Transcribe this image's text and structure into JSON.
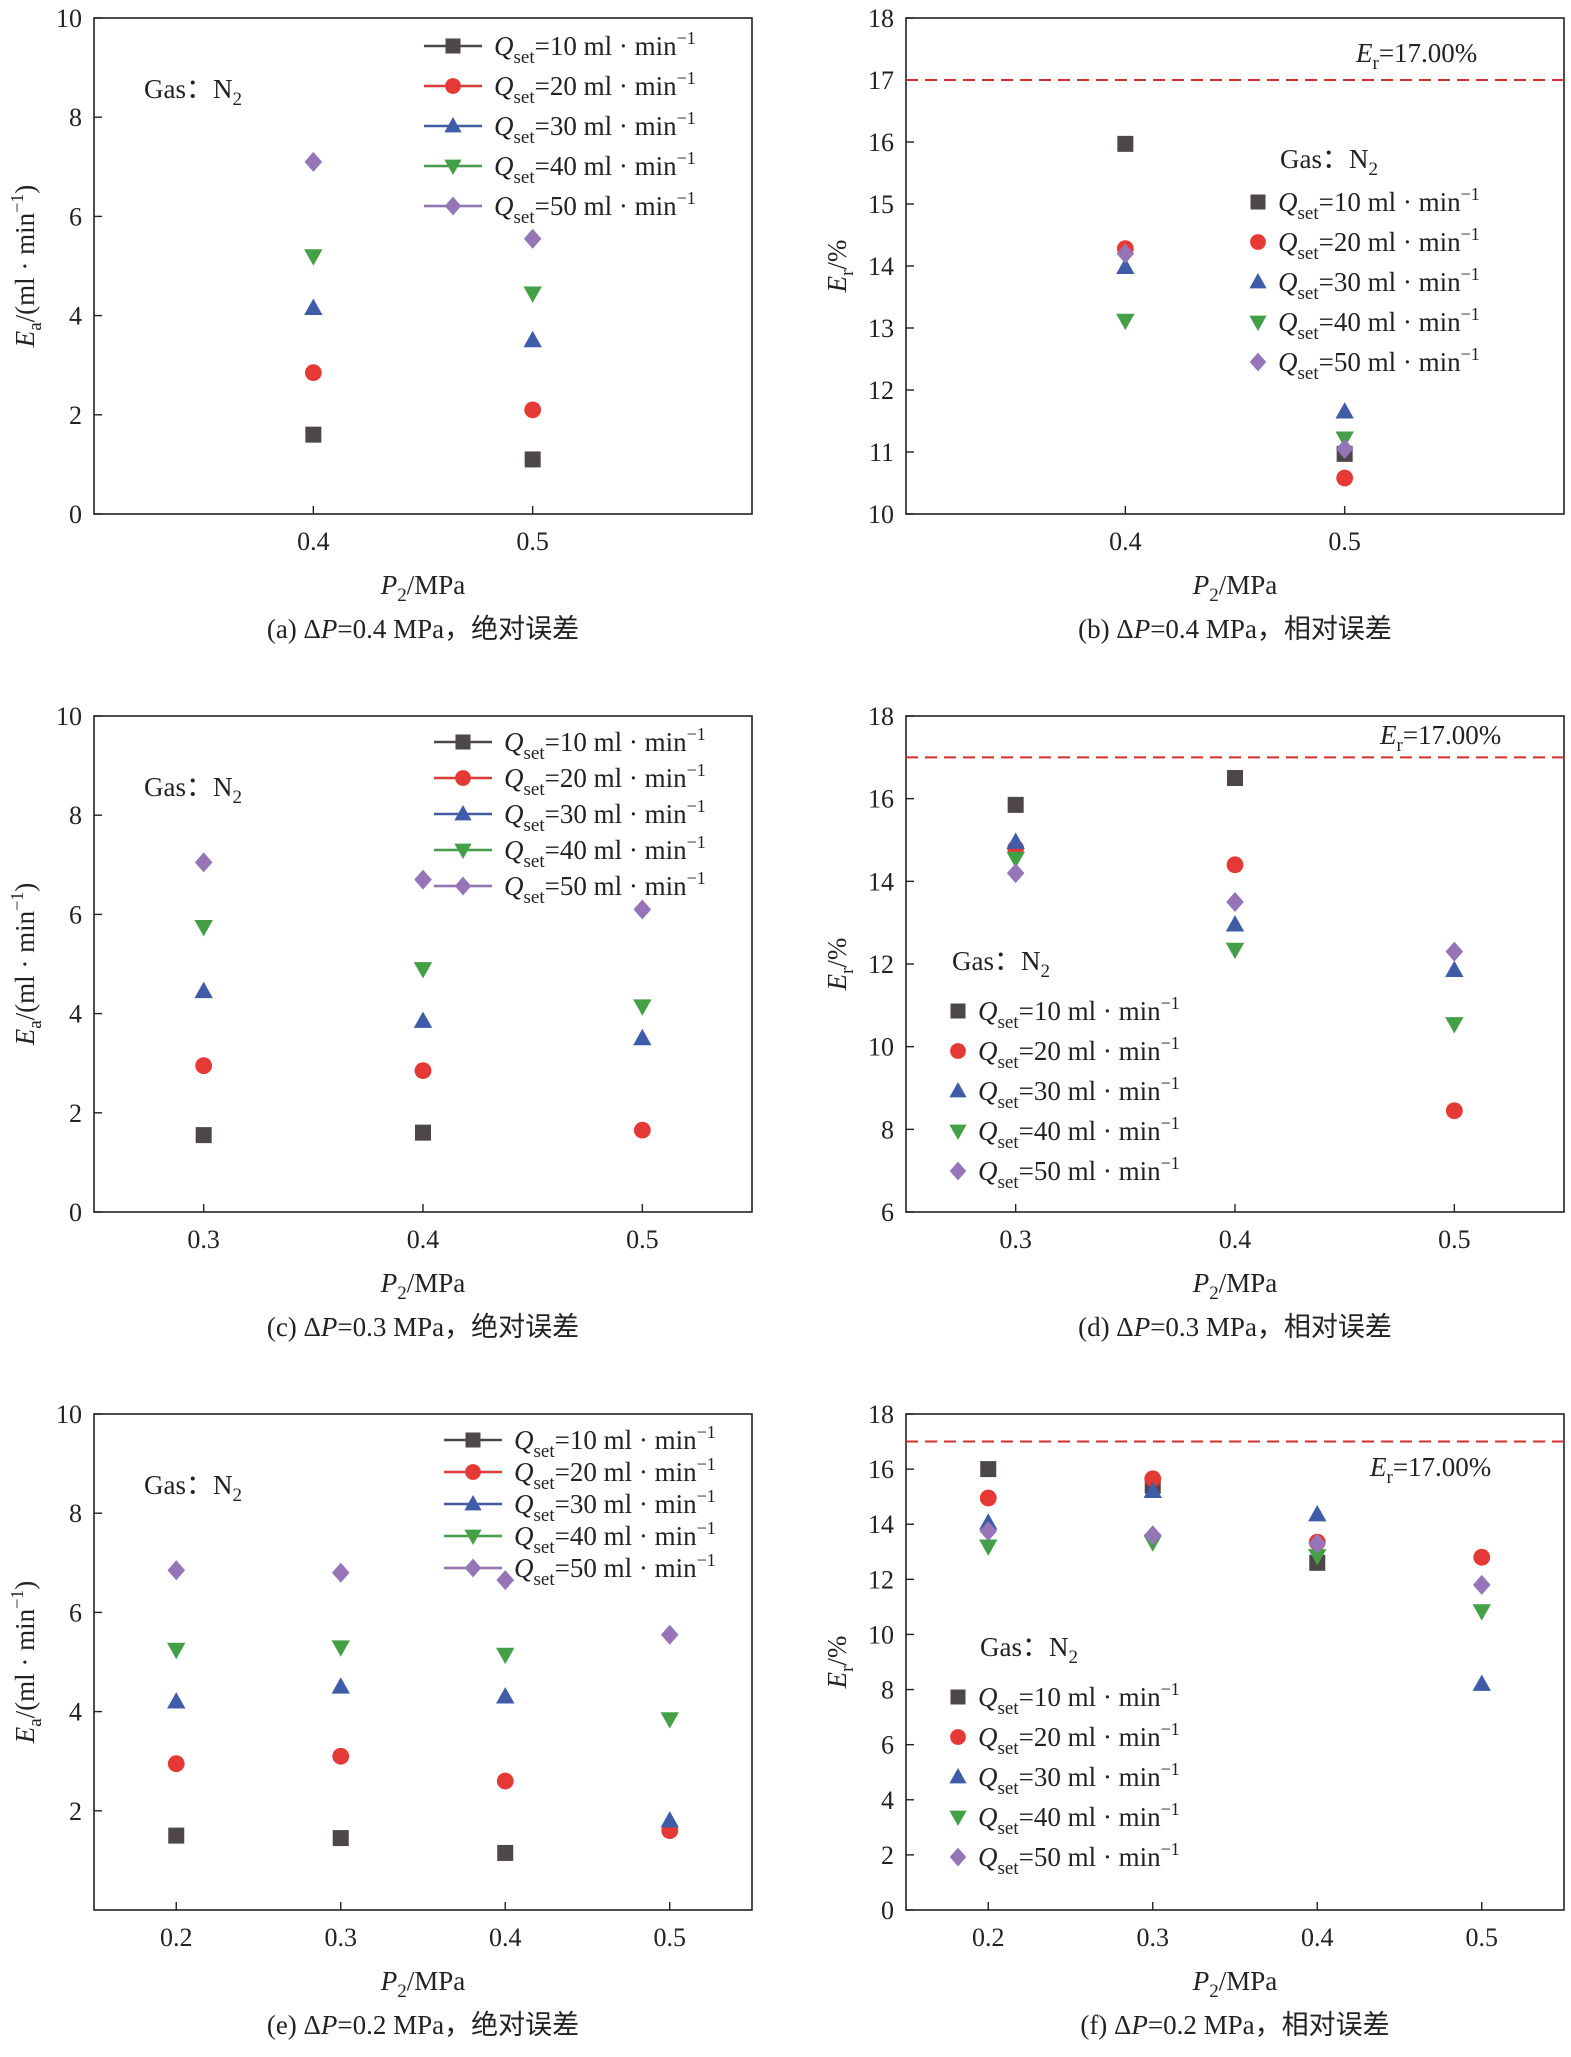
{
  "symbols": {
    "gas_prefix": "Gas：",
    "gas_name": "N",
    "gas_sub": "2",
    "q_symbol": "Q",
    "q_sub": "set",
    "unit_text": " ml · min",
    "unit_sup": "−1",
    "er_line_prefix": "E",
    "er_line_sub": "r",
    "er_line_value": "=17.00%"
  },
  "styles": {
    "series": [
      {
        "marker": "square",
        "color": "#4d4747"
      },
      {
        "marker": "circle",
        "color": "#e53935"
      },
      {
        "marker": "triangle-up",
        "color": "#3f5ca8"
      },
      {
        "marker": "triangle-down",
        "color": "#43a047"
      },
      {
        "marker": "diamond",
        "color": "#9575b8"
      }
    ],
    "threshold_color": "#d32f2f"
  },
  "chart_data": [
    {
      "type": "scatter",
      "caption": "(a) ΔP=0.4 MPa，绝对误差",
      "xlabel": "P2/MPa",
      "ylabel": "Ea/(ml · min−1)",
      "xlim": [
        0.3,
        0.6
      ],
      "ylim": [
        0,
        10
      ],
      "xticks": [
        0.4,
        0.5
      ],
      "xtick_labels": [
        "0.4",
        "0.5"
      ],
      "yticks": [
        0,
        2,
        4,
        6,
        8,
        10
      ],
      "x": [
        0.4,
        0.5
      ],
      "series": [
        {
          "name": "Qset=10 ml · min−1",
          "setpoint": "10",
          "values": [
            1.6,
            1.1
          ]
        },
        {
          "name": "Qset=20 ml · min−1",
          "setpoint": "20",
          "values": [
            2.85,
            2.1
          ]
        },
        {
          "name": "Qset=30 ml · min−1",
          "setpoint": "30",
          "values": [
            4.15,
            3.5
          ]
        },
        {
          "name": "Qset=40 ml · min−1",
          "setpoint": "40",
          "values": [
            5.2,
            4.45
          ]
        },
        {
          "name": "Qset=50 ml · min−1",
          "setpoint": "50",
          "values": [
            7.1,
            5.55
          ]
        }
      ],
      "legend": "top-right",
      "legend_lines": true,
      "gas_label": "Gas：N2",
      "threshold": null
    },
    {
      "type": "scatter",
      "caption": "(b) ΔP=0.4 MPa，相对误差",
      "xlabel": "P2/MPa",
      "ylabel": "Er/%",
      "xlim": [
        0.3,
        0.6
      ],
      "ylim": [
        10,
        18
      ],
      "xticks": [
        0.4,
        0.5
      ],
      "xtick_labels": [
        "0.4",
        "0.5"
      ],
      "yticks": [
        10,
        11,
        12,
        13,
        14,
        15,
        16,
        17,
        18
      ],
      "x": [
        0.4,
        0.5
      ],
      "series": [
        {
          "name": "Qset=10 ml · min−1",
          "setpoint": "10",
          "values": [
            15.97,
            10.97
          ]
        },
        {
          "name": "Qset=20 ml · min−1",
          "setpoint": "20",
          "values": [
            14.28,
            10.58
          ]
        },
        {
          "name": "Qset=30 ml · min−1",
          "setpoint": "30",
          "values": [
            13.98,
            11.65
          ]
        },
        {
          "name": "Qset=40 ml · min−1",
          "setpoint": "40",
          "values": [
            13.12,
            11.22
          ]
        },
        {
          "name": "Qset=50 ml · min−1",
          "setpoint": "50",
          "values": [
            14.2,
            11.05
          ]
        }
      ],
      "legend": "center-right",
      "legend_lines": false,
      "gas_label": "Gas：N2",
      "threshold": 17.0
    },
    {
      "type": "scatter",
      "caption": "(c) ΔP=0.3 MPa，绝对误差",
      "xlabel": "P2/MPa",
      "ylabel": "Ea/(ml · min−1)",
      "xlim": [
        0.25,
        0.55
      ],
      "ylim": [
        0,
        10
      ],
      "xticks": [
        0.3,
        0.4,
        0.5
      ],
      "xtick_labels": [
        "0.3",
        "0.4",
        "0.5"
      ],
      "yticks": [
        0,
        2,
        4,
        6,
        8,
        10
      ],
      "x": [
        0.3,
        0.4,
        0.5
      ],
      "series": [
        {
          "name": "Qset=10 ml · min−1",
          "setpoint": "10",
          "values": [
            1.55,
            1.6,
            null
          ]
        },
        {
          "name": "Qset=20 ml · min−1",
          "setpoint": "20",
          "values": [
            2.95,
            2.85,
            1.65
          ]
        },
        {
          "name": "Qset=30 ml · min−1",
          "setpoint": "30",
          "values": [
            4.45,
            3.85,
            3.5
          ]
        },
        {
          "name": "Qset=40 ml · min−1",
          "setpoint": "40",
          "values": [
            5.75,
            4.9,
            4.15
          ]
        },
        {
          "name": "Qset=50 ml · min−1",
          "setpoint": "50",
          "values": [
            7.05,
            6.7,
            6.1
          ]
        }
      ],
      "legend": "top-right",
      "legend_lines": true,
      "gas_label": "Gas：N2",
      "threshold": null
    },
    {
      "type": "scatter",
      "caption": "(d) ΔP=0.3 MPa，相对误差",
      "xlabel": "P2/MPa",
      "ylabel": "Er/%",
      "xlim": [
        0.25,
        0.55
      ],
      "ylim": [
        6,
        18
      ],
      "xticks": [
        0.3,
        0.4,
        0.5
      ],
      "xtick_labels": [
        "0.3",
        "0.4",
        "0.5"
      ],
      "yticks": [
        6,
        8,
        10,
        12,
        14,
        16,
        18
      ],
      "x": [
        0.3,
        0.4,
        0.5
      ],
      "series": [
        {
          "name": "Qset=10 ml · min−1",
          "setpoint": "10",
          "values": [
            15.85,
            16.5,
            null
          ]
        },
        {
          "name": "Qset=20 ml · min−1",
          "setpoint": "20",
          "values": [
            14.8,
            14.4,
            8.45
          ]
        },
        {
          "name": "Qset=30 ml · min−1",
          "setpoint": "30",
          "values": [
            14.95,
            12.95,
            11.85
          ]
        },
        {
          "name": "Qset=40 ml · min−1",
          "setpoint": "40",
          "values": [
            14.55,
            12.35,
            10.55
          ]
        },
        {
          "name": "Qset=50 ml · min−1",
          "setpoint": "50",
          "values": [
            14.2,
            13.5,
            12.3
          ]
        }
      ],
      "legend": "lower-left",
      "legend_lines": false,
      "gas_label": "Gas：N2",
      "threshold": 17.0
    },
    {
      "type": "scatter",
      "caption": "(e) ΔP=0.2 MPa，绝对误差",
      "xlabel": "P2/MPa",
      "ylabel": "Ea/(ml · min−1)",
      "xlim": [
        0.15,
        0.55
      ],
      "ylim": [
        0,
        10
      ],
      "xticks": [
        0.2,
        0.3,
        0.4,
        0.5
      ],
      "xtick_labels": [
        "0.2",
        "0.3",
        "0.4",
        "0.5"
      ],
      "yticks": [
        2,
        4,
        6,
        8,
        10
      ],
      "x": [
        0.2,
        0.3,
        0.4,
        0.5
      ],
      "series": [
        {
          "name": "Qset=10 ml · min−1",
          "setpoint": "10",
          "values": [
            1.5,
            1.45,
            1.15,
            null
          ]
        },
        {
          "name": "Qset=20 ml · min−1",
          "setpoint": "20",
          "values": [
            2.95,
            3.1,
            2.6,
            1.6
          ]
        },
        {
          "name": "Qset=30 ml · min−1",
          "setpoint": "30",
          "values": [
            4.2,
            4.5,
            4.3,
            1.8
          ]
        },
        {
          "name": "Qset=40 ml · min−1",
          "setpoint": "40",
          "values": [
            5.25,
            5.3,
            5.15,
            3.85
          ]
        },
        {
          "name": "Qset=50 ml · min−1",
          "setpoint": "50",
          "values": [
            6.85,
            6.8,
            6.65,
            5.55
          ]
        }
      ],
      "legend": "top-right",
      "legend_lines": true,
      "gas_label": "Gas：N2",
      "threshold": null
    },
    {
      "type": "scatter",
      "caption": "(f) ΔP=0.2 MPa，相对误差",
      "xlabel": "P2/MPa",
      "ylabel": "Er/%",
      "xlim": [
        0.15,
        0.55
      ],
      "ylim": [
        0,
        18
      ],
      "xticks": [
        0.2,
        0.3,
        0.4,
        0.5
      ],
      "xtick_labels": [
        "0.2",
        "0.3",
        "0.4",
        "0.5"
      ],
      "yticks": [
        0,
        2,
        4,
        6,
        8,
        10,
        12,
        14,
        16,
        18
      ],
      "x": [
        0.2,
        0.3,
        0.4,
        0.5
      ],
      "series": [
        {
          "name": "Qset=10 ml · min−1",
          "setpoint": "10",
          "values": [
            16.0,
            15.4,
            12.6,
            null
          ]
        },
        {
          "name": "Qset=20 ml · min−1",
          "setpoint": "20",
          "values": [
            14.95,
            15.65,
            13.35,
            12.8
          ]
        },
        {
          "name": "Qset=30 ml · min−1",
          "setpoint": "30",
          "values": [
            14.05,
            15.2,
            14.35,
            8.2
          ]
        },
        {
          "name": "Qset=40 ml · min−1",
          "setpoint": "40",
          "values": [
            13.2,
            13.35,
            12.85,
            10.85
          ]
        },
        {
          "name": "Qset=50 ml · min−1",
          "setpoint": "50",
          "values": [
            13.75,
            13.6,
            13.3,
            11.8
          ]
        }
      ],
      "legend": "lower-left",
      "legend_lines": false,
      "gas_label": "Gas：N2",
      "threshold": 17.0
    }
  ]
}
